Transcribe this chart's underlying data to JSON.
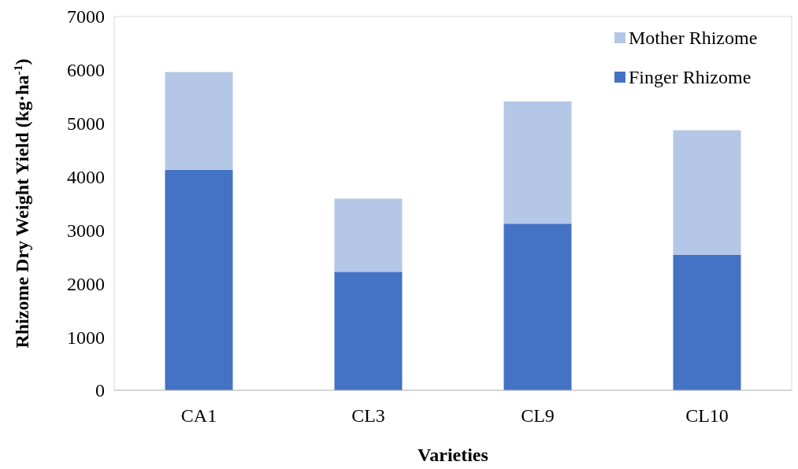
{
  "chart_data": {
    "type": "bar",
    "stacked": true,
    "xlabel": "Varieties",
    "ylabel": "Rhizome Dry Weight Yield (kg·ha$^{-1}$)",
    "categories": [
      "CA1",
      "CL3",
      "CL9",
      "CL10"
    ],
    "series": [
      {
        "name": "Finger Rhizome",
        "color": "#4472c4",
        "values": [
          4130,
          2220,
          3120,
          2540
        ]
      },
      {
        "name": "Mother Rhizome",
        "color": "#b4c7e7",
        "values": [
          1830,
          1370,
          2290,
          2330
        ]
      }
    ],
    "ylim": [
      0,
      7000
    ],
    "yticks": [
      0,
      1000,
      2000,
      3000,
      4000,
      5000,
      6000,
      7000
    ],
    "legend": "top right"
  }
}
